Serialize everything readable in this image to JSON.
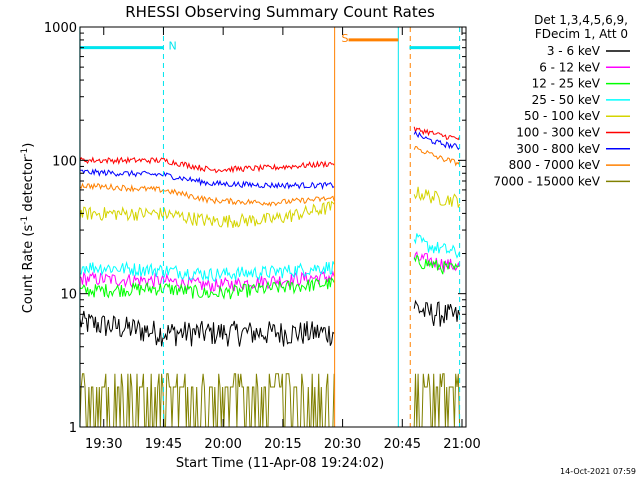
{
  "chart_data": {
    "type": "line",
    "title": "RHESSI Observing Summary Count Rates",
    "xlabel": "Start Time (11-Apr-08 19:24:02)",
    "ylabel_main": "Count Rate (s",
    "ylabel_sup1": "-1",
    "ylabel_mid": " detector",
    "ylabel_sup2": "-1",
    "ylabel_end": ")",
    "yscale": "log",
    "xlim": [
      "19:24:02",
      "21:01:00"
    ],
    "ylim": [
      1,
      1000
    ],
    "x_ticks": [
      {
        "label": "19:30",
        "value": 19.5
      },
      {
        "label": "19:45",
        "value": 19.75
      },
      {
        "label": "20:00",
        "value": 20.0
      },
      {
        "label": "20:15",
        "value": 20.25
      },
      {
        "label": "20:30",
        "value": 20.5
      },
      {
        "label": "20:45",
        "value": 20.75
      },
      {
        "label": "21:00",
        "value": 21.0
      }
    ],
    "y_ticks": [
      {
        "label": "1",
        "value": 1
      },
      {
        "label": "10",
        "value": 10
      },
      {
        "label": "100",
        "value": 100
      },
      {
        "label": "1000",
        "value": 1000
      }
    ],
    "info_lines": [
      "Det 1,3,4,5,6,9,",
      "FDecim 1, Att 0"
    ],
    "timestamp": "14-Oct-2021 07:59",
    "data_gap": {
      "start": 20.4667,
      "end": 20.7833
    },
    "series": [
      {
        "name": "3 - 6 keV",
        "color": "#000000",
        "segments": [
          {
            "x": [
              19.4,
              19.75,
              19.95,
              20.2,
              20.465
            ],
            "y": [
              6,
              5,
              5,
              5,
              5
            ]
          },
          {
            "x": [
              20.8,
              20.85,
              20.9,
              20.99
            ],
            "y": [
              8,
              7,
              7,
              6.5
            ]
          }
        ]
      },
      {
        "name": "6 - 12 keV",
        "color": "#ff00ff",
        "segments": [
          {
            "x": [
              19.4,
              19.75,
              19.95,
              20.2,
              20.465
            ],
            "y": [
              13,
              12.5,
              11.5,
              12.5,
              13.5
            ]
          },
          {
            "x": [
              20.8,
              20.85,
              20.9,
              20.99
            ],
            "y": [
              18.5,
              18,
              17,
              16
            ]
          }
        ]
      },
      {
        "name": "12 - 25 keV",
        "color": "#00ff00",
        "segments": [
          {
            "x": [
              19.4,
              19.75,
              19.95,
              20.2,
              20.465
            ],
            "y": [
              10.5,
              11,
              10,
              11,
              12
            ]
          },
          {
            "x": [
              20.8,
              20.85,
              20.9,
              20.99
            ],
            "y": [
              17.5,
              17,
              16,
              15
            ]
          }
        ]
      },
      {
        "name": "25 - 50 keV",
        "color": "#00ffff",
        "segments": [
          {
            "x": [
              19.4,
              19.75,
              19.95,
              20.2,
              20.465
            ],
            "y": [
              16,
              15,
              14,
              14.5,
              16
            ]
          },
          {
            "x": [
              20.8,
              20.85,
              20.9,
              20.99
            ],
            "y": [
              26,
              23,
              22,
              20
            ]
          }
        ]
      },
      {
        "name": "50 - 100 keV",
        "color": "#d4d400",
        "segments": [
          {
            "x": [
              19.4,
              19.75,
              19.95,
              20.2,
              20.465
            ],
            "y": [
              40,
              40,
              35,
              36,
              45
            ]
          },
          {
            "x": [
              20.8,
              20.85,
              20.9,
              20.99
            ],
            "y": [
              58,
              55,
              52,
              50
            ]
          }
        ]
      },
      {
        "name": "100 - 300 keV",
        "color": "#ff0000",
        "segments": [
          {
            "x": [
              19.4,
              19.75,
              19.95,
              20.2,
              20.465
            ],
            "y": [
              100,
              100,
              85,
              88,
              95
            ]
          },
          {
            "x": [
              20.8,
              20.85,
              20.9,
              20.99
            ],
            "y": [
              170,
              165,
              155,
              145
            ]
          }
        ]
      },
      {
        "name": "300 - 800 keV",
        "color": "#0000ff",
        "segments": [
          {
            "x": [
              19.4,
              19.75,
              19.95,
              20.2,
              20.465
            ],
            "y": [
              82,
              78,
              67,
              65,
              65
            ]
          },
          {
            "x": [
              20.8,
              20.85,
              20.9,
              20.99
            ],
            "y": [
              160,
              145,
              135,
              125
            ]
          }
        ]
      },
      {
        "name": "800 - 7000 keV",
        "color": "#ff8000",
        "segments": [
          {
            "x": [
              19.4,
              19.75,
              19.95,
              20.2,
              20.465
            ],
            "y": [
              65,
              60,
              50,
              48,
              52
            ]
          },
          {
            "x": [
              20.8,
              20.85,
              20.9,
              20.99
            ],
            "y": [
              125,
              115,
              105,
              95
            ]
          }
        ]
      },
      {
        "name": "7000 - 15000 keV",
        "color": "#808000",
        "segments": [
          {
            "x": [
              19.4,
              19.75,
              19.95,
              20.2,
              20.465
            ],
            "y": [
              1.5,
              1.5,
              1.5,
              1.5,
              1.5
            ]
          },
          {
            "x": [
              20.8,
              20.85,
              20.9,
              20.99
            ],
            "y": [
              1.5,
              1.5,
              1.5,
              1.5
            ]
          }
        ]
      }
    ],
    "flags": [
      {
        "label": "N",
        "color": "#00e5ee",
        "y": 700,
        "segments": [
          [
            19.4,
            19.75
          ],
          [
            20.78,
            20.99
          ]
        ]
      },
      {
        "label": "S",
        "color": "#ff8000",
        "y": 800,
        "segments": [
          [
            20.525,
            20.7333
          ]
        ]
      }
    ],
    "vlines": [
      {
        "x": 19.4,
        "color": "#00e5ee",
        "style": "solid"
      },
      {
        "x": 19.75,
        "color": "#00e5ee",
        "style": "dashed"
      },
      {
        "x": 20.4667,
        "color": "#ff8000",
        "style": "solid"
      },
      {
        "x": 20.7333,
        "color": "#00e5ee",
        "style": "solid"
      },
      {
        "x": 20.7833,
        "color": "#ff8000",
        "style": "dashed"
      },
      {
        "x": 20.99,
        "color": "#00e5ee",
        "style": "dashed"
      }
    ]
  }
}
